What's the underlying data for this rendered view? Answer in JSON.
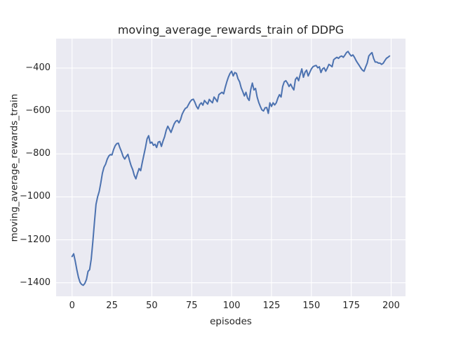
{
  "figure": {
    "title": "moving_average_rewards_train of DDPG",
    "xlabel": "episodes",
    "ylabel": "moving_average_rewards_train"
  },
  "chart_data": {
    "type": "line",
    "title": "moving_average_rewards_train of DDPG",
    "xlabel": "episodes",
    "ylabel": "moving_average_rewards_train",
    "grid": true,
    "legend_position": "none",
    "xlim": [
      -10,
      209
    ],
    "ylim": [
      -1463,
      -263
    ],
    "xticks": [
      0,
      25,
      50,
      75,
      100,
      125,
      150,
      175,
      200
    ],
    "yticks": [
      -400,
      -600,
      -800,
      -1000,
      -1200,
      -1400
    ],
    "style": {
      "figure_bg": "#ffffff",
      "plot_bg": "#eaeaf2",
      "grid_color": "#ffffff",
      "line_color": "#4c72b0",
      "text_color": "#262626"
    },
    "series": [
      {
        "name": "moving_average_rewards_train",
        "color": "#4c72b0",
        "x": [
          0,
          1,
          2,
          3,
          4,
          5,
          6,
          7,
          8,
          9,
          10,
          11,
          12,
          13,
          14,
          15,
          16,
          17,
          18,
          19,
          20,
          21,
          22,
          23,
          24,
          25,
          26,
          27,
          28,
          29,
          30,
          31,
          32,
          33,
          34,
          35,
          36,
          37,
          38,
          39,
          40,
          41,
          42,
          43,
          44,
          45,
          46,
          47,
          48,
          49,
          50,
          51,
          52,
          53,
          54,
          55,
          56,
          57,
          58,
          59,
          60,
          61,
          62,
          63,
          64,
          65,
          66,
          67,
          68,
          69,
          70,
          71,
          72,
          73,
          74,
          75,
          76,
          77,
          78,
          79,
          80,
          81,
          82,
          83,
          84,
          85,
          86,
          87,
          88,
          89,
          90,
          91,
          92,
          93,
          94,
          95,
          96,
          97,
          98,
          99,
          100,
          101,
          102,
          103,
          104,
          105,
          106,
          107,
          108,
          109,
          110,
          111,
          112,
          113,
          114,
          115,
          116,
          117,
          118,
          119,
          120,
          121,
          122,
          123,
          124,
          125,
          126,
          127,
          128,
          129,
          130,
          131,
          132,
          133,
          134,
          135,
          136,
          137,
          138,
          139,
          140,
          141,
          142,
          143,
          144,
          145,
          146,
          147,
          148,
          149,
          150,
          151,
          152,
          153,
          154,
          155,
          156,
          157,
          158,
          159,
          160,
          161,
          162,
          163,
          164,
          165,
          166,
          167,
          168,
          169,
          170,
          171,
          172,
          173,
          174,
          175,
          176,
          177,
          178,
          179,
          180,
          181,
          182,
          183,
          184,
          185,
          186,
          187,
          188,
          189,
          190,
          191,
          192,
          193,
          194,
          195,
          196,
          197,
          198,
          199
        ],
        "y": [
          -1278,
          -1265,
          -1300,
          -1340,
          -1375,
          -1398,
          -1408,
          -1412,
          -1403,
          -1385,
          -1347,
          -1339,
          -1290,
          -1210,
          -1120,
          -1035,
          -1000,
          -975,
          -935,
          -890,
          -862,
          -848,
          -825,
          -810,
          -803,
          -805,
          -780,
          -762,
          -752,
          -750,
          -772,
          -790,
          -812,
          -824,
          -812,
          -802,
          -830,
          -855,
          -873,
          -900,
          -916,
          -890,
          -868,
          -878,
          -840,
          -805,
          -770,
          -730,
          -715,
          -750,
          -745,
          -760,
          -755,
          -770,
          -745,
          -742,
          -765,
          -740,
          -720,
          -690,
          -671,
          -685,
          -700,
          -680,
          -660,
          -648,
          -644,
          -655,
          -640,
          -615,
          -600,
          -588,
          -584,
          -570,
          -557,
          -548,
          -545,
          -560,
          -579,
          -590,
          -570,
          -562,
          -573,
          -551,
          -560,
          -568,
          -546,
          -555,
          -562,
          -535,
          -545,
          -557,
          -524,
          -518,
          -513,
          -520,
          -490,
          -464,
          -442,
          -425,
          -415,
          -437,
          -421,
          -425,
          -450,
          -464,
          -492,
          -510,
          -530,
          -513,
          -540,
          -551,
          -500,
          -470,
          -502,
          -495,
          -535,
          -560,
          -579,
          -595,
          -600,
          -585,
          -584,
          -611,
          -562,
          -579,
          -562,
          -572,
          -562,
          -540,
          -524,
          -535,
          -486,
          -464,
          -459,
          -470,
          -486,
          -475,
          -490,
          -502,
          -453,
          -443,
          -459,
          -430,
          -404,
          -443,
          -420,
          -410,
          -437,
          -420,
          -404,
          -394,
          -390,
          -388,
          -399,
          -394,
          -421,
          -404,
          -399,
          -415,
          -400,
          -383,
          -388,
          -394,
          -361,
          -355,
          -350,
          -355,
          -347,
          -344,
          -350,
          -340,
          -328,
          -323,
          -335,
          -344,
          -339,
          -350,
          -365,
          -377,
          -388,
          -400,
          -410,
          -415,
          -395,
          -377,
          -344,
          -335,
          -328,
          -355,
          -372,
          -372,
          -377,
          -377,
          -383,
          -378,
          -366,
          -355,
          -350,
          -344
        ]
      }
    ]
  }
}
